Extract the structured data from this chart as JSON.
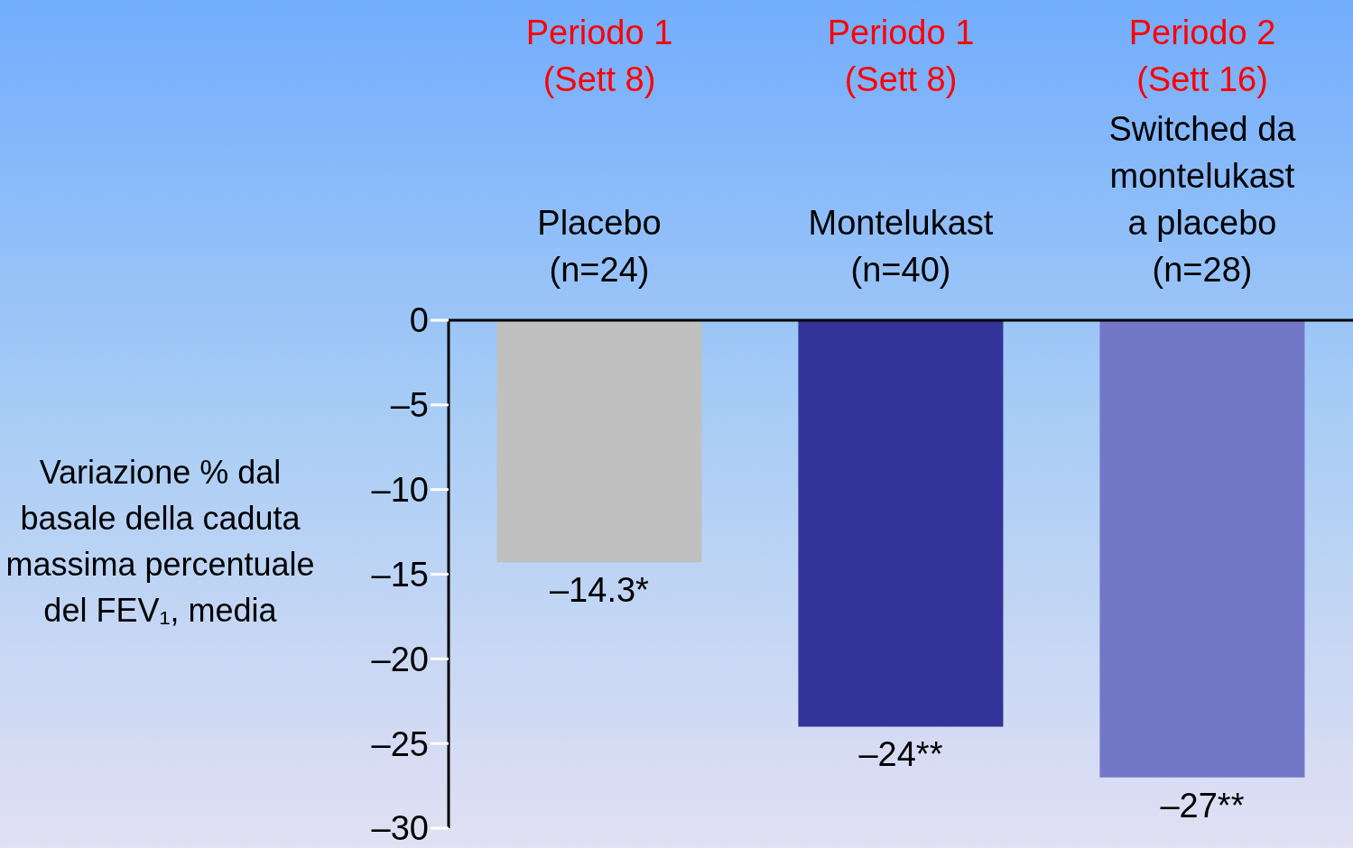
{
  "chart_data": {
    "type": "bar",
    "categories": [
      "Placebo\n(n=24)",
      "Montelukast\n(n=40)",
      "Switched da\nmontelukast\na placebo\n(n=28)"
    ],
    "values": [
      -14.3,
      -24,
      -27
    ],
    "colors": [
      "#c0c0c0",
      "#333399",
      "#7277c8"
    ],
    "value_labels": [
      "–14.3*",
      "–24**",
      "–27**"
    ],
    "ylabel": "Variazione % dal basale della caduta massima percentuale del FEV₁, media",
    "annotations": [
      "Periodo 1\n(Sett 8)",
      "Periodo 1\n(Sett 8)",
      "Periodo 2\n(Sett 16)"
    ],
    "ylim": [
      -30,
      0
    ],
    "yticks": [
      {
        "value": 0,
        "label": "0"
      },
      {
        "value": -5,
        "label": "–5"
      },
      {
        "value": -10,
        "label": "–10"
      },
      {
        "value": -15,
        "label": "–15"
      },
      {
        "value": -20,
        "label": "–20"
      },
      {
        "value": -25,
        "label": "–25"
      },
      {
        "value": -30,
        "label": "–30"
      }
    ],
    "grid": false,
    "legend": false
  }
}
